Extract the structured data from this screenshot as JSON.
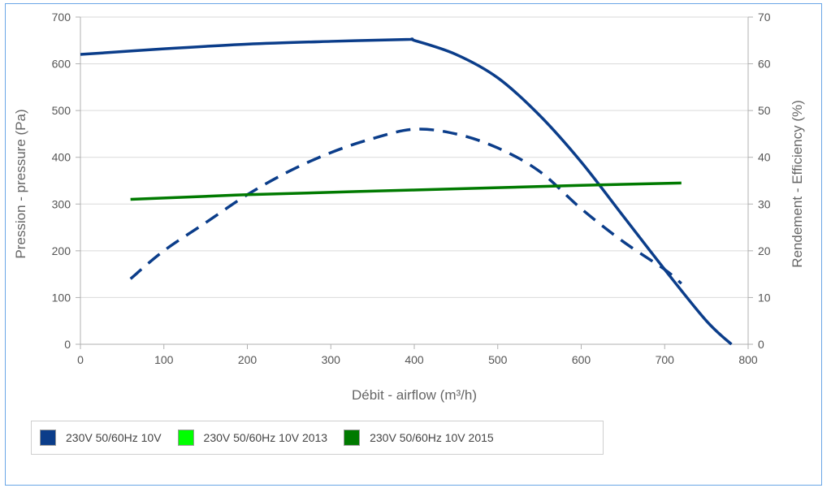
{
  "chart_data": {
    "type": "line",
    "xlabel": "Débit - airflow (m³/h)",
    "ylabel": "Pression - pressure (Pa)",
    "y2label": "Rendement - Efficiency (%)",
    "xlim": [
      0,
      800
    ],
    "ylim": [
      0,
      700
    ],
    "y2lim": [
      0,
      70
    ],
    "x_ticks": [
      0,
      100,
      200,
      300,
      400,
      500,
      600,
      700,
      800
    ],
    "y_ticks": [
      0,
      100,
      200,
      300,
      400,
      500,
      600,
      700
    ],
    "y2_ticks": [
      0,
      10,
      20,
      30,
      40,
      50,
      60,
      70
    ],
    "grid": true,
    "legend_position": "bottom-left",
    "series": [
      {
        "name": "230V 50/60Hz 10V",
        "color": "#0b3d8a",
        "axis": "left",
        "style": "solid",
        "x": [
          0,
          100,
          200,
          300,
          390,
          400,
          450,
          500,
          550,
          600,
          650,
          700,
          750,
          780
        ],
        "y": [
          620,
          632,
          642,
          648,
          652,
          650,
          620,
          570,
          490,
          390,
          275,
          160,
          50,
          0
        ]
      },
      {
        "legend": false,
        "color": "#0b3d8a",
        "axis": "right",
        "style": "dashed",
        "x": [
          60,
          100,
          150,
          200,
          250,
          300,
          350,
          400,
          450,
          500,
          550,
          600,
          650,
          700,
          720
        ],
        "y": [
          14,
          20,
          26,
          32,
          37,
          41,
          44,
          46,
          45,
          42,
          37,
          29,
          22,
          16,
          13
        ]
      },
      {
        "name": "230V 50/60Hz 10V 2013",
        "color": "#00ff00",
        "axis": "left",
        "style": "solid",
        "x": [],
        "y": []
      },
      {
        "name": "230V 50/60Hz 10V 2015",
        "color": "#007a00",
        "axis": "right",
        "style": "solid",
        "x": [
          60,
          200,
          400,
          600,
          720
        ],
        "y": [
          31,
          32,
          33,
          34,
          34.5
        ]
      }
    ]
  }
}
